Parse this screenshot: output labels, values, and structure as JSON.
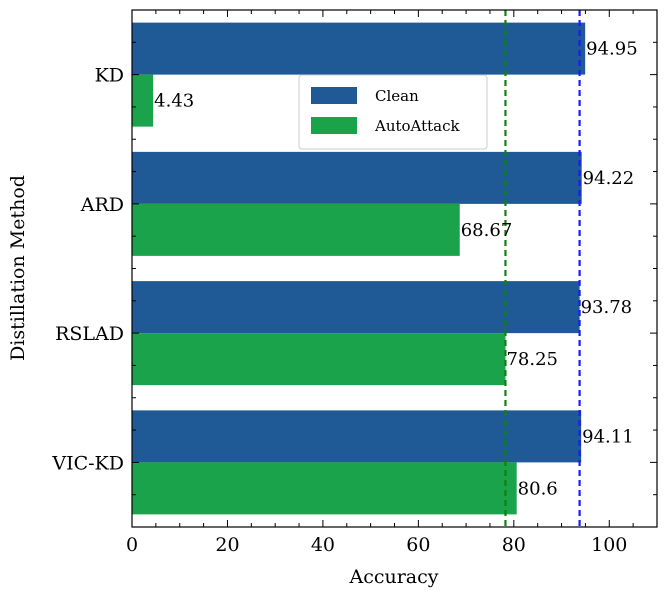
{
  "chart_data": {
    "type": "bar",
    "orientation": "horizontal",
    "title": "",
    "xlabel": "Accuracy",
    "ylabel": "Distillation Method",
    "xlim": [
      0,
      110
    ],
    "xticks": [
      0,
      20,
      40,
      60,
      80,
      100
    ],
    "categories": [
      "KD",
      "ARD",
      "RSLAD",
      "VIC-KD"
    ],
    "series": [
      {
        "name": "Clean",
        "color": "#1f5a96",
        "values": [
          94.95,
          94.22,
          93.78,
          94.11
        ],
        "labels": [
          "94.95",
          "94.22",
          "93.78",
          "94.11"
        ]
      },
      {
        "name": "AutoAttack",
        "color": "#1aa34a",
        "values": [
          4.43,
          68.67,
          78.25,
          80.6
        ],
        "labels": [
          "4.43",
          "68.67",
          "78.25",
          "80.6"
        ]
      }
    ],
    "reference_lines": [
      {
        "value": 78.25,
        "color": "#108010",
        "style": "dashed"
      },
      {
        "value": 93.78,
        "color": "#1a1aff",
        "style": "dashed"
      }
    ],
    "legend": {
      "position": "top-center",
      "entries": [
        "Clean",
        "AutoAttack"
      ]
    },
    "grid": false
  }
}
